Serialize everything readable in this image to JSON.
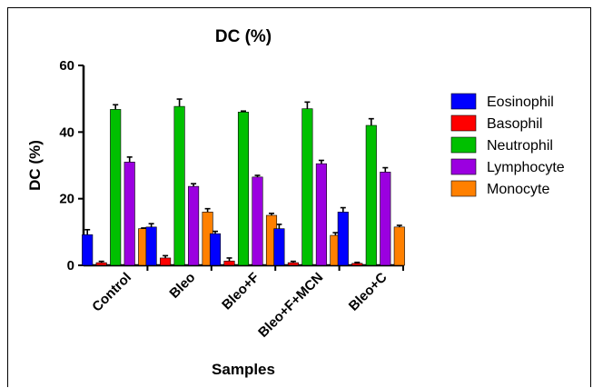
{
  "chart_data": {
    "type": "bar",
    "title": "DC (%)",
    "xlabel": "Samples",
    "ylabel": "DC (%)",
    "ylim": [
      0,
      60
    ],
    "yticks": [
      0,
      20,
      40,
      60
    ],
    "categories": [
      "Control",
      "Bleo",
      "Bleo+F",
      "Bleo+F+MCN",
      "Bleo+C"
    ],
    "legend_position": "right",
    "grid": false,
    "series": [
      {
        "name": "Eosinophil",
        "color": "#0000ff",
        "values": [
          9.2,
          11.5,
          9.5,
          11.0,
          16.0
        ],
        "errors": [
          1.5,
          1.0,
          0.7,
          1.3,
          1.3
        ]
      },
      {
        "name": "Basophil",
        "color": "#ff0000",
        "values": [
          0.8,
          2.2,
          1.3,
          0.8,
          0.6
        ],
        "errors": [
          0.4,
          0.7,
          0.9,
          0.4,
          0.3
        ]
      },
      {
        "name": "Neutrophil",
        "color": "#00c000",
        "values": [
          46.8,
          47.7,
          46.0,
          47.0,
          42.0
        ],
        "errors": [
          1.4,
          2.2,
          0.3,
          2.0,
          2.0
        ]
      },
      {
        "name": "Lymphocyte",
        "color": "#9b00e0",
        "values": [
          31.0,
          23.7,
          26.5,
          30.5,
          28.0
        ],
        "errors": [
          1.5,
          0.8,
          0.5,
          1.0,
          1.3
        ]
      },
      {
        "name": "Monocyte",
        "color": "#ff8000",
        "values": [
          11.0,
          16.0,
          15.0,
          9.0,
          11.5
        ],
        "errors": [
          0.2,
          1.0,
          0.6,
          0.8,
          0.5
        ]
      }
    ]
  }
}
